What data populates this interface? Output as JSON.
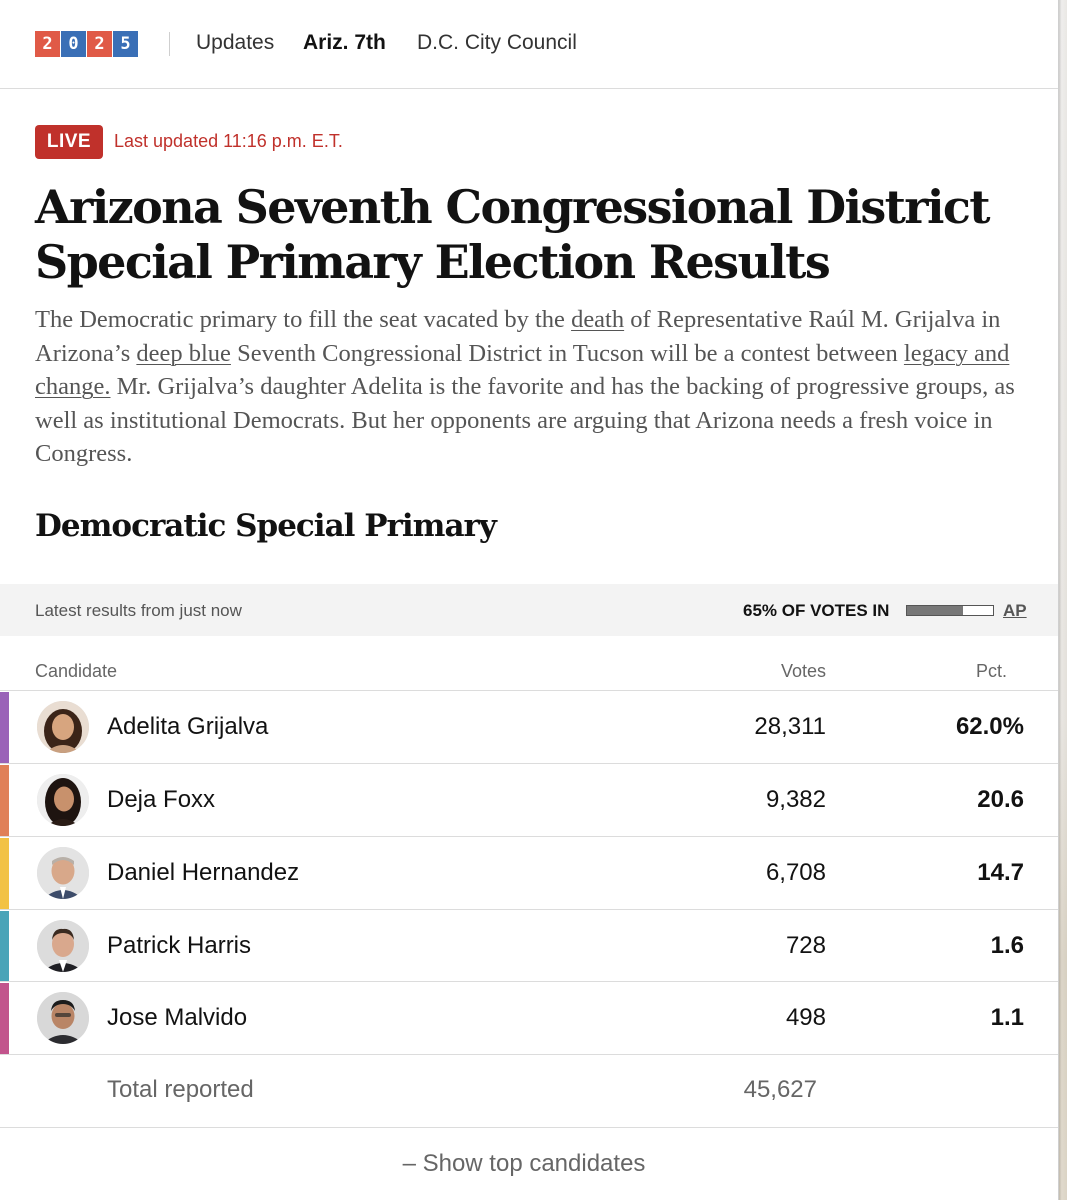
{
  "nav": {
    "logo_digits": [
      "2",
      "0",
      "2",
      "5"
    ],
    "logo_colors": [
      "#e05a47",
      "#3a6fb6",
      "#e05a47",
      "#3a6fb6"
    ],
    "links": [
      {
        "label": "Updates",
        "active": false
      },
      {
        "label": "Ariz. 7th",
        "active": true
      },
      {
        "label": "D.C. City Council",
        "active": false
      }
    ]
  },
  "live": {
    "badge": "LIVE",
    "updated": "Last updated 11:16 p.m. E.T."
  },
  "article": {
    "headline": "Arizona Seventh Congressional District Special Primary Election Results",
    "dek_parts": [
      {
        "text": "The Democratic primary to fill the seat vacated by the ",
        "link": false
      },
      {
        "text": "death",
        "link": true
      },
      {
        "text": " of Representative Raúl M. Grijalva in Arizona’s ",
        "link": false
      },
      {
        "text": "deep blue",
        "link": true
      },
      {
        "text": " Seventh Congressional District in Tucson will be a contest between ",
        "link": false
      },
      {
        "text": "legacy and change.",
        "link": true
      },
      {
        "text": " Mr. Grijalva’s daughter Adelita is the favorite and has the backing of progressive groups, as well as institutional Democrats. But her opponents are arguing that Arizona needs a fresh voice in Congress.",
        "link": false
      }
    ]
  },
  "race": {
    "title": "Democratic Special Primary",
    "latest": "Latest results from just now",
    "votes_in_label": "65% OF VOTES IN",
    "votes_in_fraction": 0.65,
    "source": "AP",
    "columns": {
      "candidate": "Candidate",
      "votes": "Votes",
      "pct": "Pct."
    },
    "candidates": [
      {
        "name": "Adelita Grijalva",
        "votes": "28,311",
        "pct": "62.0%",
        "color": "#9a62b8",
        "avatar": "adelita-grijalva-photo"
      },
      {
        "name": "Deja Foxx",
        "votes": "9,382",
        "pct": "20.6",
        "color": "#e08058",
        "avatar": "deja-foxx-photo"
      },
      {
        "name": "Daniel Hernandez",
        "votes": "6,708",
        "pct": "14.7",
        "color": "#f2c245",
        "avatar": "daniel-hernandez-photo"
      },
      {
        "name": "Patrick Harris",
        "votes": "728",
        "pct": "1.6",
        "color": "#4aa4b8",
        "avatar": "patrick-harris-photo"
      },
      {
        "name": "Jose Malvido",
        "votes": "498",
        "pct": "1.1",
        "color": "#c2548c",
        "avatar": "jose-malvido-photo"
      }
    ],
    "total_label": "Total reported",
    "total_votes": "45,627",
    "show_button": "– Show top candidates"
  }
}
